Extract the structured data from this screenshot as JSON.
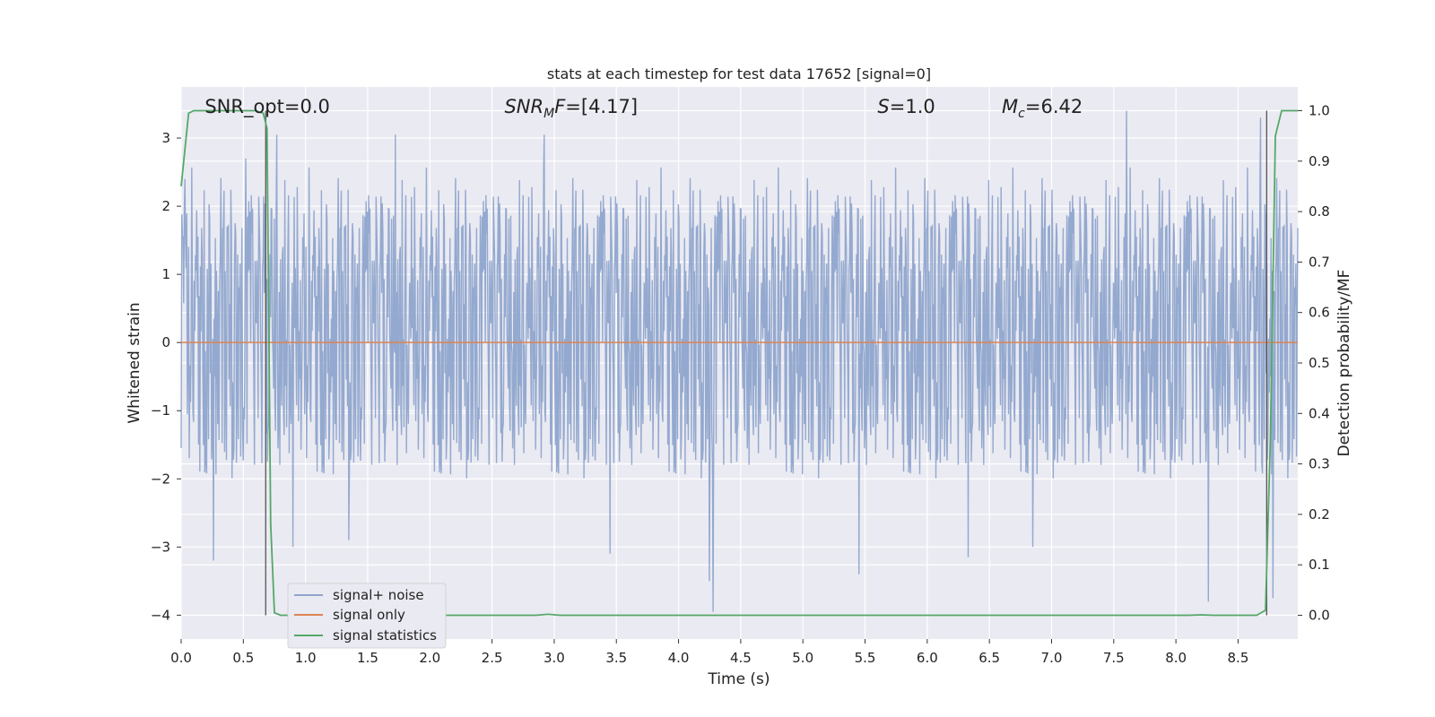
{
  "chart_data": {
    "type": "line",
    "title": "stats at each timestep for test data 17652 [signal=0]",
    "xlabel": "Time (s)",
    "ylabel": "Whitened strain",
    "y2label": "Detection probability/MF",
    "xlim": [
      0.0,
      8.98
    ],
    "ylim": [
      -4.35,
      3.75
    ],
    "y2lim": [
      -0.047,
      1.047
    ],
    "x_ticks": [
      "0.0",
      "0.5",
      "1.0",
      "1.5",
      "2.0",
      "2.5",
      "3.0",
      "3.5",
      "4.0",
      "4.5",
      "5.0",
      "5.5",
      "6.0",
      "6.5",
      "7.0",
      "7.5",
      "8.0",
      "8.5"
    ],
    "x_tick_values": [
      0.0,
      0.5,
      1.0,
      1.5,
      2.0,
      2.5,
      3.0,
      3.5,
      4.0,
      4.5,
      5.0,
      5.5,
      6.0,
      6.5,
      7.0,
      7.5,
      8.0,
      8.5
    ],
    "y_ticks": [
      "3",
      "2",
      "1",
      "0",
      "−1",
      "−2",
      "−3",
      "−4"
    ],
    "y_tick_values": [
      3,
      2,
      1,
      0,
      -1,
      -2,
      -3,
      -4
    ],
    "y2_ticks": [
      "1.0",
      "0.9",
      "0.8",
      "0.7",
      "0.6",
      "0.5",
      "0.4",
      "0.3",
      "0.2",
      "0.1",
      "0.0"
    ],
    "y2_tick_values": [
      1.0,
      0.9,
      0.8,
      0.7,
      0.6,
      0.5,
      0.4,
      0.3,
      0.2,
      0.1,
      0.0
    ],
    "grid": true,
    "legend_position": "lower-left",
    "annotations": [
      {
        "id": "snr_opt",
        "text": "SNR_opt=0.0",
        "x": 0.19,
        "y": 3.45
      },
      {
        "id": "snr_mf",
        "text": "SNR_MF=[4.17]",
        "x": 2.6,
        "y": 3.45
      },
      {
        "id": "s",
        "text": "S=1.0",
        "x": 5.6,
        "y": 3.45
      },
      {
        "id": "mc",
        "text": "M_c=6.42",
        "x": 6.6,
        "y": 3.45
      }
    ],
    "vertical_lines": [
      0.68,
      8.73
    ],
    "series": [
      {
        "name": "signal+ noise",
        "color": "#8fa5cc",
        "axis": "left",
        "description": "whitened noise, approximately uniform in [-1.8, 2.3] with spikes",
        "noise_band": [
          -1.8,
          2.3
        ],
        "spikes": [
          {
            "x": 0.03,
            "y": 2.4
          },
          {
            "x": 0.26,
            "y": -3.2
          },
          {
            "x": 0.52,
            "y": 2.7
          },
          {
            "x": 0.77,
            "y": 3.05
          },
          {
            "x": 0.9,
            "y": -3.0
          },
          {
            "x": 1.72,
            "y": 3.05
          },
          {
            "x": 1.35,
            "y": -2.9
          },
          {
            "x": 2.92,
            "y": 3.05
          },
          {
            "x": 3.45,
            "y": -3.1
          },
          {
            "x": 4.25,
            "y": -3.5
          },
          {
            "x": 4.28,
            "y": -3.95
          },
          {
            "x": 5.45,
            "y": -3.4
          },
          {
            "x": 7.6,
            "y": 3.4
          },
          {
            "x": 8.26,
            "y": -3.8
          },
          {
            "x": 8.68,
            "y": 3.3
          },
          {
            "x": 8.78,
            "y": -3.75
          },
          {
            "x": 6.33,
            "y": -3.15
          },
          {
            "x": 6.85,
            "y": -3.0
          }
        ]
      },
      {
        "name": "signal only",
        "color": "#dd8452",
        "axis": "left",
        "x": [
          0.0,
          8.98
        ],
        "y": [
          0.0,
          0.0
        ]
      },
      {
        "name": "signal statistics",
        "color": "#55a868",
        "axis": "right",
        "x": [
          0.0,
          0.06,
          0.1,
          0.6,
          0.66,
          0.69,
          0.72,
          0.75,
          0.8,
          2.85,
          2.95,
          3.05,
          8.1,
          8.2,
          8.3,
          8.65,
          8.72,
          8.76,
          8.8,
          8.85,
          8.98
        ],
        "y": [
          0.85,
          0.995,
          1.0,
          1.0,
          0.995,
          0.965,
          0.18,
          0.005,
          0.0,
          0.0,
          0.002,
          0.0,
          0.0,
          0.001,
          0.0,
          0.0,
          0.01,
          0.35,
          0.95,
          1.0,
          1.0
        ]
      }
    ]
  }
}
